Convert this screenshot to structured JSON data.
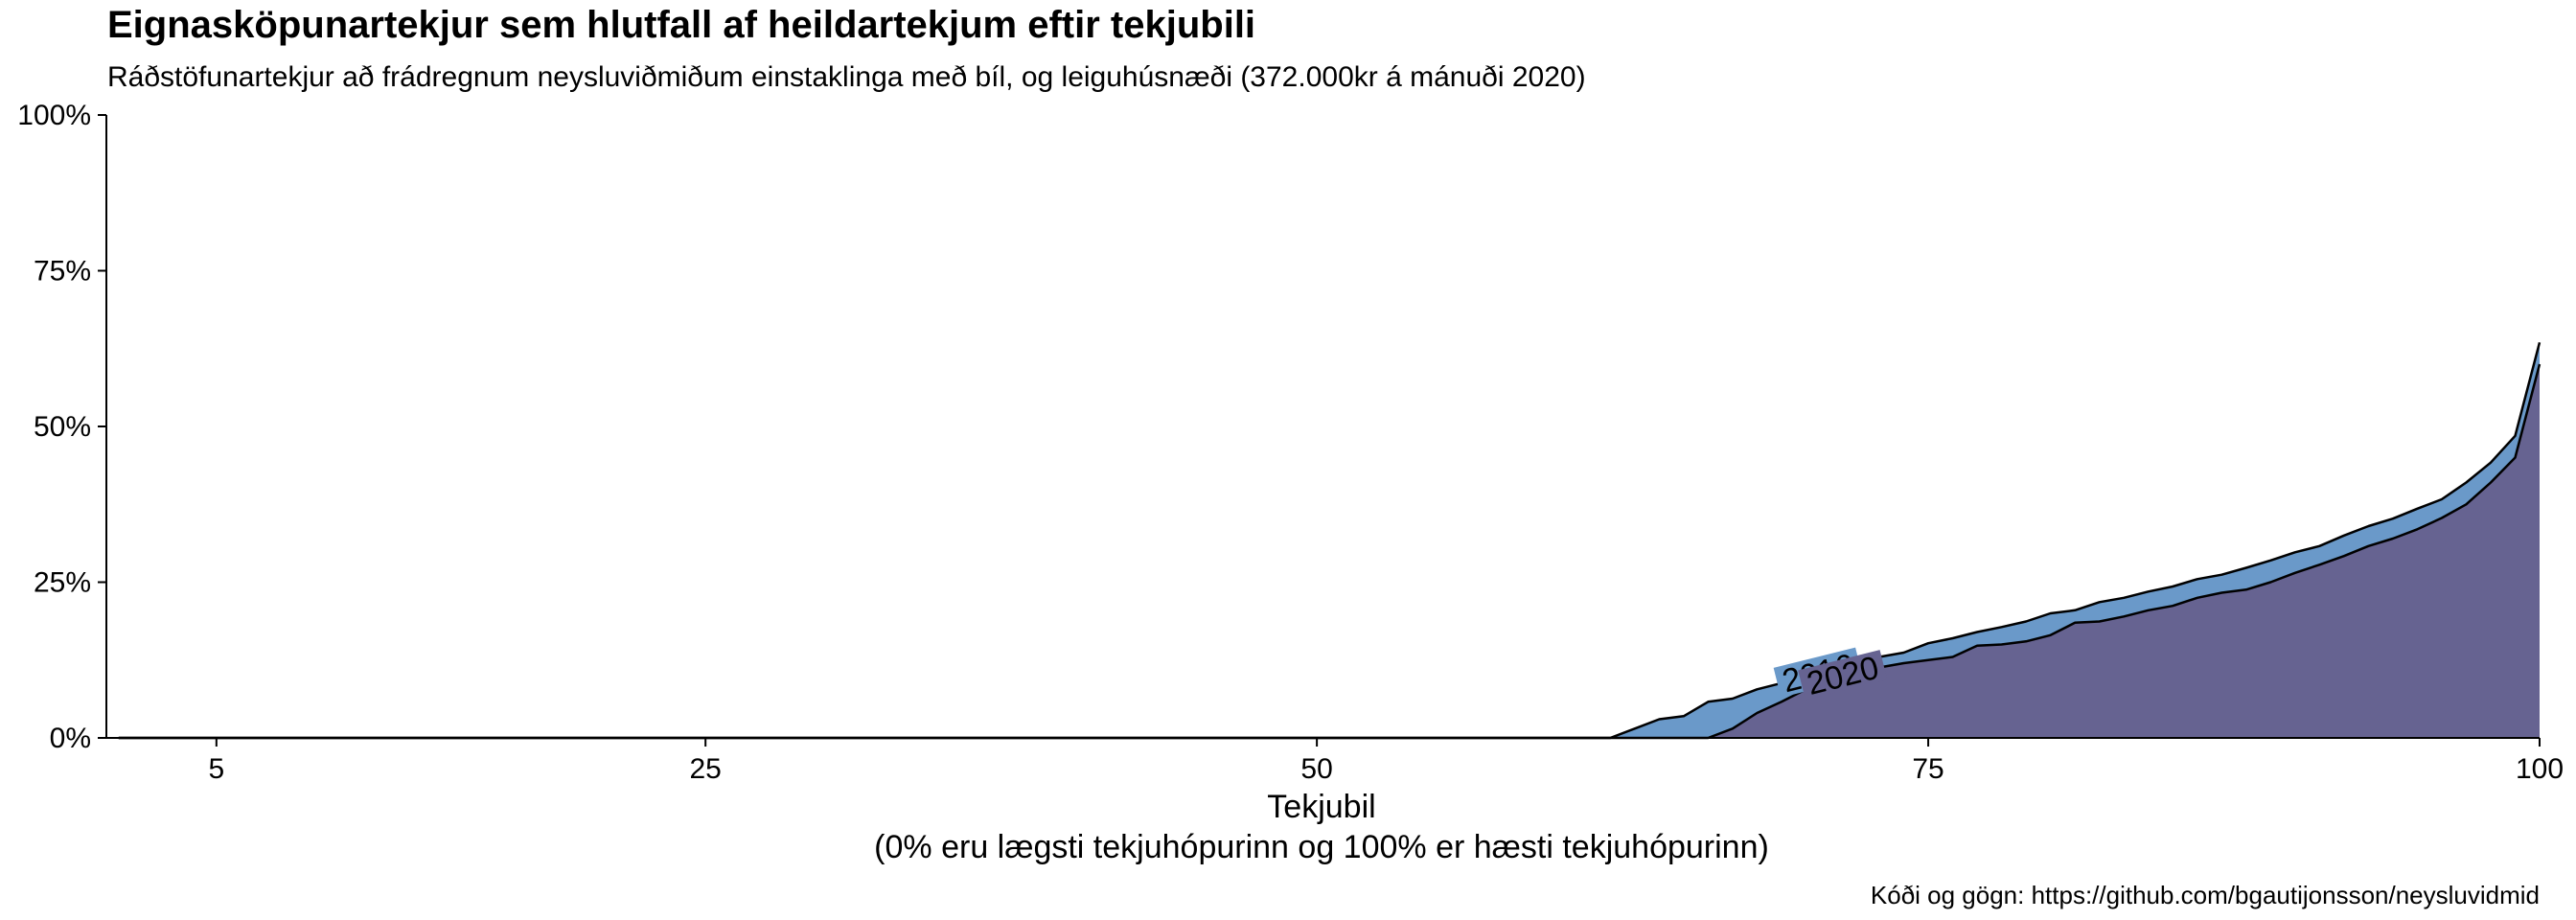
{
  "chart_data": {
    "type": "area",
    "title": "Eignasköpunartekjur sem hlutfall af heildartekjum eftir tekjubili",
    "subtitle": "Ráðstöfunartekjur að frádregnum neysluviðmiðum einstaklinga með bíl, og leiguhúsnæði (372.000kr á mánuði 2020)",
    "xlabel": "Tekjubil",
    "xlabel_sub": "(0% eru lægsti tekjuhópurinn og 100% er hæsti tekjuhópurinn)",
    "ylabel": "",
    "caption": "Kóði og gögn: https://github.com/bgautijonsson/neysluvidmid",
    "xlim": [
      0.5,
      100
    ],
    "ylim": [
      0,
      1
    ],
    "x_ticks": [
      5,
      25,
      50,
      75,
      100
    ],
    "x_tick_labels": [
      "5",
      "25",
      "50",
      "75",
      "100"
    ],
    "y_ticks": [
      0,
      0.25,
      0.5,
      0.75,
      1
    ],
    "y_tick_labels": [
      "0%",
      "25%",
      "50%",
      "75%",
      "100%"
    ],
    "grid": false,
    "legend": "none",
    "series": [
      {
        "name": "2016",
        "color": "#6a99c9",
        "x": [
          1,
          62,
          63,
          64,
          65,
          66,
          67,
          68,
          69,
          70,
          71,
          72,
          73,
          74,
          75,
          76,
          77,
          78,
          79,
          80,
          81,
          82,
          83,
          84,
          85,
          86,
          87,
          88,
          89,
          90,
          91,
          92,
          93,
          94,
          95,
          96,
          97,
          98,
          99,
          100
        ],
        "values": [
          0,
          0,
          0.015,
          0.03,
          0.035,
          0.058,
          0.063,
          0.078,
          0.088,
          0.1,
          0.11,
          0.12,
          0.13,
          0.137,
          0.152,
          0.16,
          0.17,
          0.178,
          0.187,
          0.2,
          0.205,
          0.218,
          0.225,
          0.235,
          0.243,
          0.255,
          0.262,
          0.273,
          0.285,
          0.298,
          0.308,
          0.325,
          0.34,
          0.352,
          0.368,
          0.383,
          0.41,
          0.442,
          0.485,
          0.635
        ]
      },
      {
        "name": "2020",
        "color": "#666391",
        "x": [
          1,
          66,
          67,
          68,
          69,
          70,
          71,
          72,
          73,
          74,
          75,
          76,
          77,
          78,
          79,
          80,
          81,
          82,
          83,
          84,
          85,
          86,
          87,
          88,
          89,
          90,
          91,
          92,
          93,
          94,
          95,
          96,
          97,
          98,
          99,
          100
        ],
        "values": [
          0,
          0,
          0.015,
          0.04,
          0.058,
          0.078,
          0.095,
          0.107,
          0.113,
          0.12,
          0.125,
          0.13,
          0.148,
          0.15,
          0.155,
          0.165,
          0.185,
          0.187,
          0.195,
          0.205,
          0.212,
          0.225,
          0.233,
          0.238,
          0.25,
          0.265,
          0.278,
          0.292,
          0.308,
          0.32,
          0.335,
          0.353,
          0.375,
          0.41,
          0.45,
          0.6
        ]
      }
    ],
    "annotations": [
      {
        "text": "2016",
        "series": "2016"
      },
      {
        "text": "2020",
        "series": "2020"
      }
    ]
  }
}
